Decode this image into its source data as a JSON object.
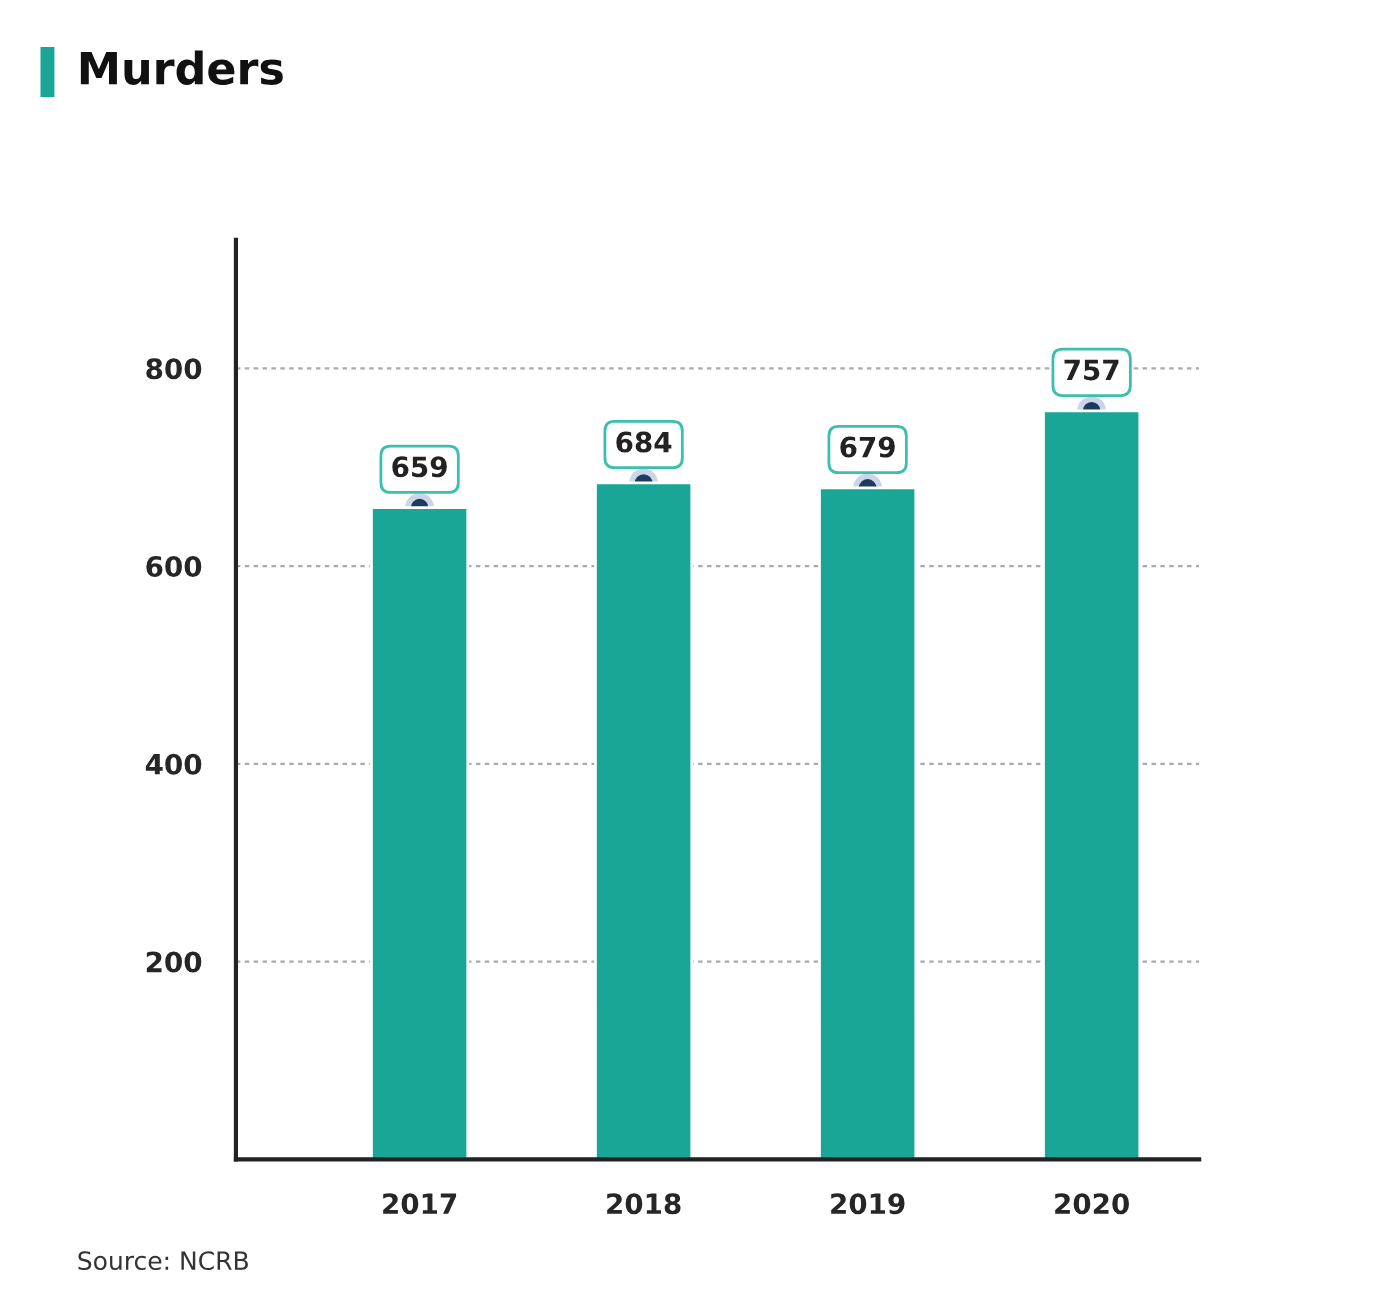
{
  "chart_data": {
    "type": "bar",
    "title": "Murders",
    "categories": [
      "2017",
      "2018",
      "2019",
      "2020"
    ],
    "series": [
      {
        "color": "#19a696",
        "values": [
          659,
          684,
          679,
          757
        ]
      },
      {
        "type": "scatter",
        "color": "#1f3a5f",
        "values": [
          659,
          684,
          679,
          757
        ],
        "marker": "circle",
        "value_labels": [
          "659",
          "684",
          "679",
          "757"
        ]
      }
    ],
    "ylim": [
      0,
      930
    ],
    "yticks": [
      200,
      400,
      600,
      800
    ],
    "grid": "y",
    "annotations": [
      "Source: NCRB"
    ]
  }
}
